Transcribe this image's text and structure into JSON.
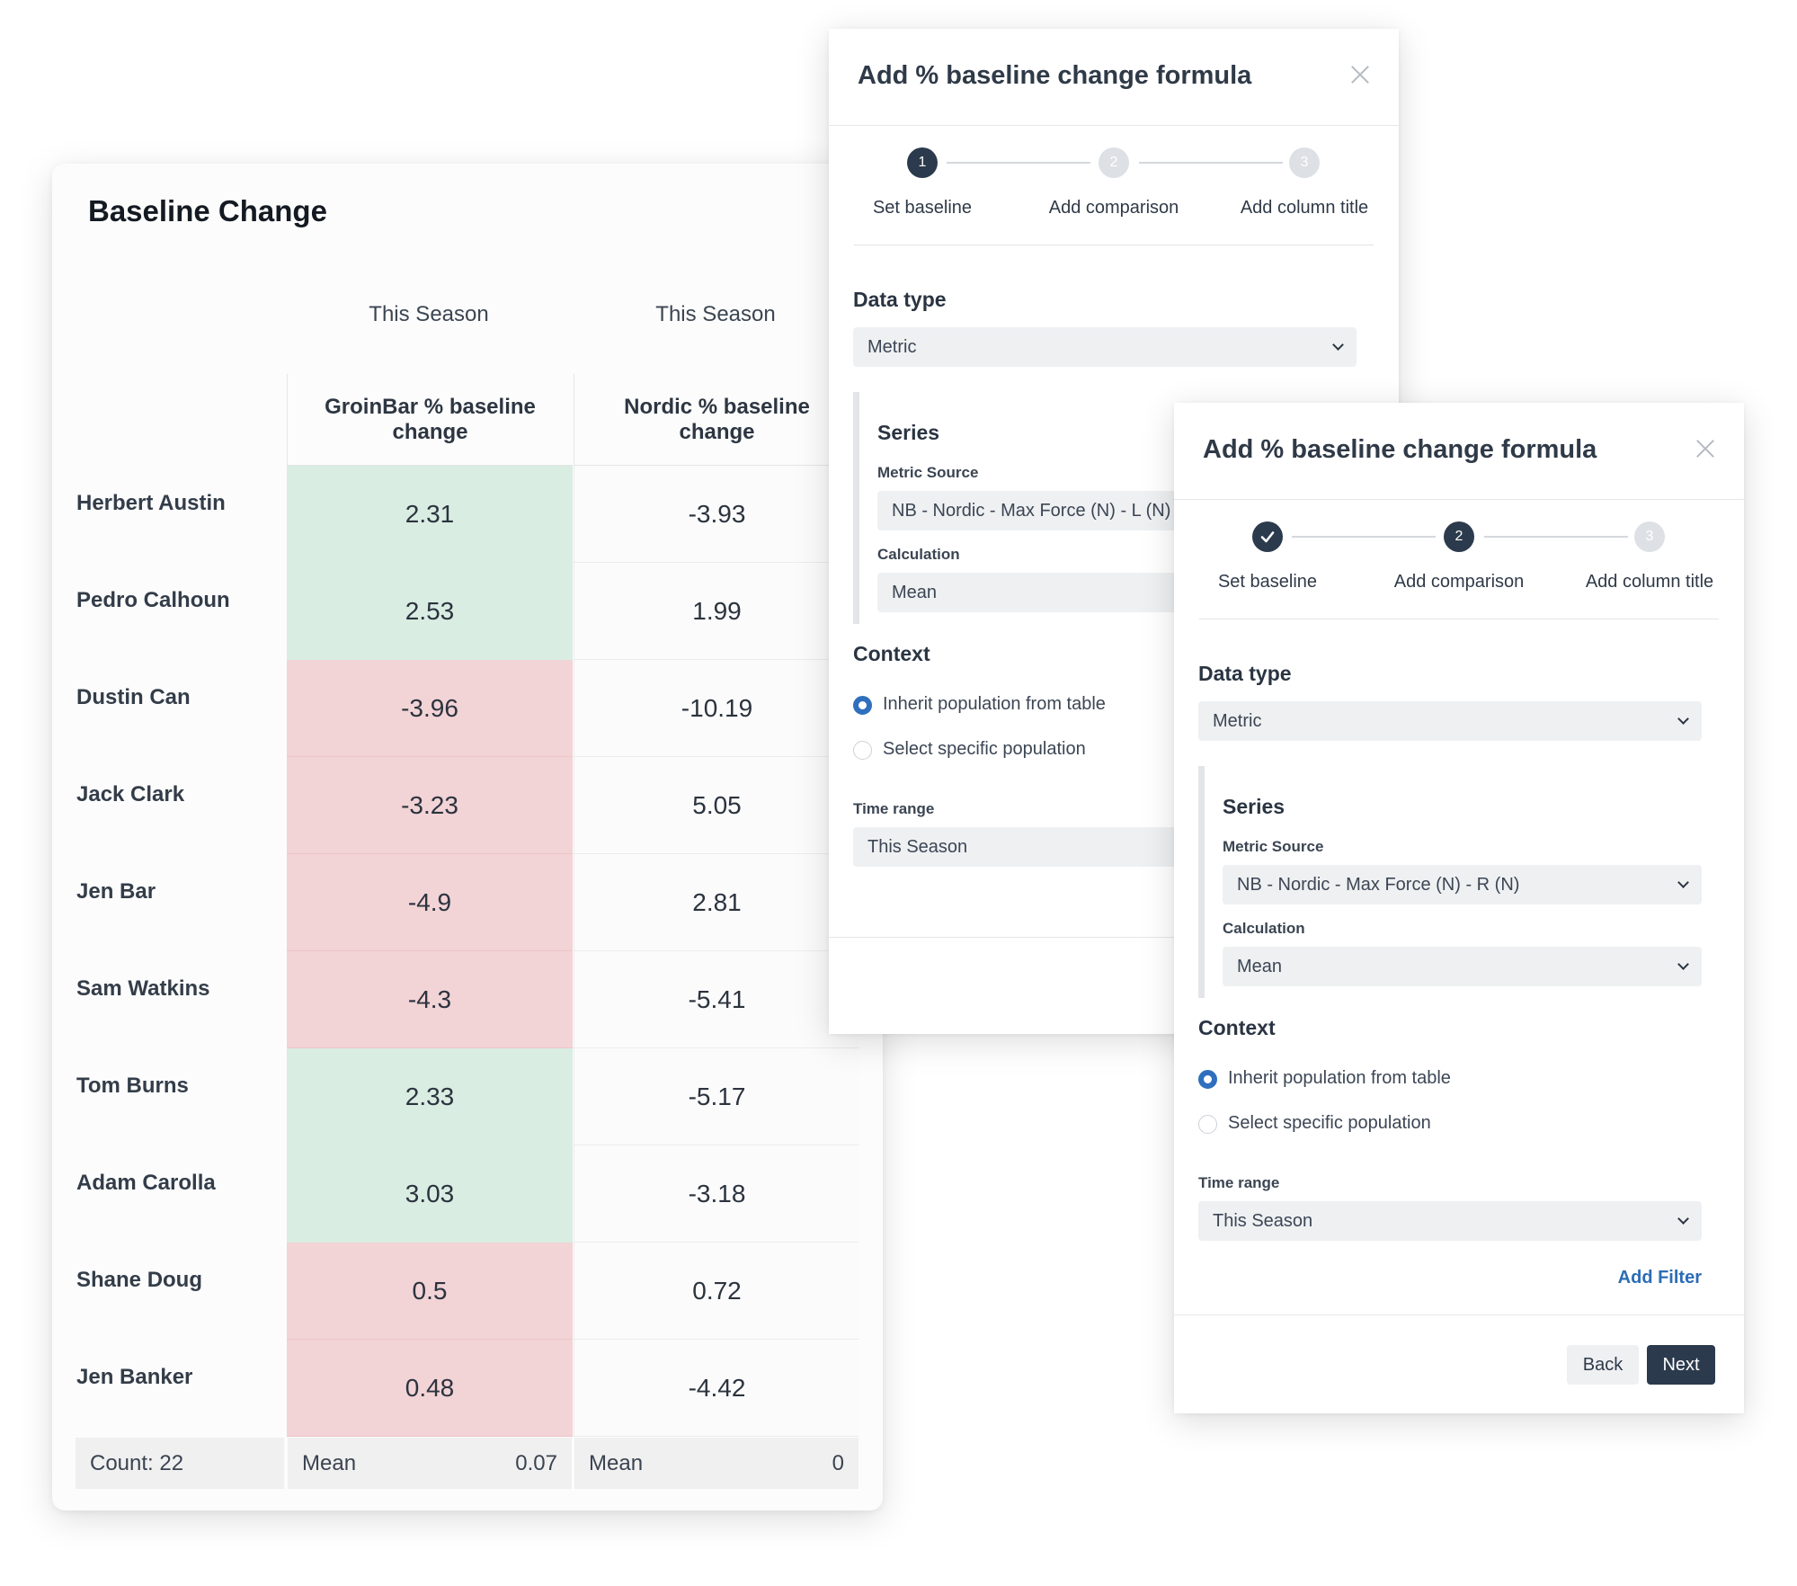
{
  "table": {
    "title": "Baseline Change",
    "groups": [
      "This Season",
      "This Season"
    ],
    "columns": [
      "GroinBar % baseline change",
      "Nordic % baseline change"
    ],
    "rows": [
      {
        "name": "Herbert Austin",
        "groin": "2.31",
        "groin_status": "positive",
        "nordic": "-3.93"
      },
      {
        "name": "Pedro Calhoun",
        "groin": "2.53",
        "groin_status": "positive",
        "nordic": "1.99"
      },
      {
        "name": "Dustin Can",
        "groin": "-3.96",
        "groin_status": "negative",
        "nordic": "-10.19"
      },
      {
        "name": "Jack Clark",
        "groin": "-3.23",
        "groin_status": "negative",
        "nordic": "5.05"
      },
      {
        "name": "Jen Bar",
        "groin": "-4.9",
        "groin_status": "negative",
        "nordic": "2.81"
      },
      {
        "name": "Sam Watkins",
        "groin": "-4.3",
        "groin_status": "negative",
        "nordic": "-5.41"
      },
      {
        "name": "Tom Burns",
        "groin": "2.33",
        "groin_status": "positive",
        "nordic": "-5.17"
      },
      {
        "name": "Adam Carolla",
        "groin": "3.03",
        "groin_status": "positive",
        "nordic": "-3.18"
      },
      {
        "name": "Shane Doug",
        "groin": "0.5",
        "groin_status": "negative",
        "nordic": "0.72"
      },
      {
        "name": "Jen Banker",
        "groin": "0.48",
        "groin_status": "negative",
        "nordic": "-4.42"
      }
    ],
    "footer": {
      "count": "Count: 22",
      "groin_label": "Mean",
      "groin_value": "0.07",
      "nordic_label": "Mean",
      "nordic_value": "0"
    },
    "colors": {
      "positive": "#d9ede2",
      "negative": "#f2d3d6"
    }
  },
  "dialog_back": {
    "title": "Add % baseline change formula",
    "steps": [
      {
        "num": "1",
        "label": "Set baseline",
        "state": "active"
      },
      {
        "num": "2",
        "label": "Add comparison",
        "state": "inactive"
      },
      {
        "num": "3",
        "label": "Add column title",
        "state": "inactive"
      }
    ],
    "data_type_label": "Data type",
    "data_type_value": "Metric",
    "series_label": "Series",
    "metric_source_label": "Metric Source",
    "metric_source_value": "NB - Nordic - Max Force (N) - L (N)",
    "calculation_label": "Calculation",
    "calculation_value": "Mean",
    "context_label": "Context",
    "radio_inherit": "Inherit population from table",
    "radio_specific": "Select specific population",
    "time_range_label": "Time range",
    "time_range_value": "This Season"
  },
  "dialog_front": {
    "title": "Add % baseline change formula",
    "steps": [
      {
        "num": "",
        "label": "Set baseline",
        "state": "done"
      },
      {
        "num": "2",
        "label": "Add comparison",
        "state": "active"
      },
      {
        "num": "3",
        "label": "Add column title",
        "state": "inactive"
      }
    ],
    "data_type_label": "Data type",
    "data_type_value": "Metric",
    "series_label": "Series",
    "metric_source_label": "Metric Source",
    "metric_source_value": "NB - Nordic - Max Force (N) - R (N)",
    "calculation_label": "Calculation",
    "calculation_value": "Mean",
    "context_label": "Context",
    "radio_inherit": "Inherit population from table",
    "radio_specific": "Select specific population",
    "time_range_label": "Time range",
    "time_range_value": "This Season",
    "add_filter": "Add Filter",
    "back_label": "Back",
    "next_label": "Next"
  },
  "icons": [
    "close-icon",
    "chevron-down-icon",
    "checkmark-icon",
    "radio-selected-icon",
    "radio-unselected-icon"
  ]
}
